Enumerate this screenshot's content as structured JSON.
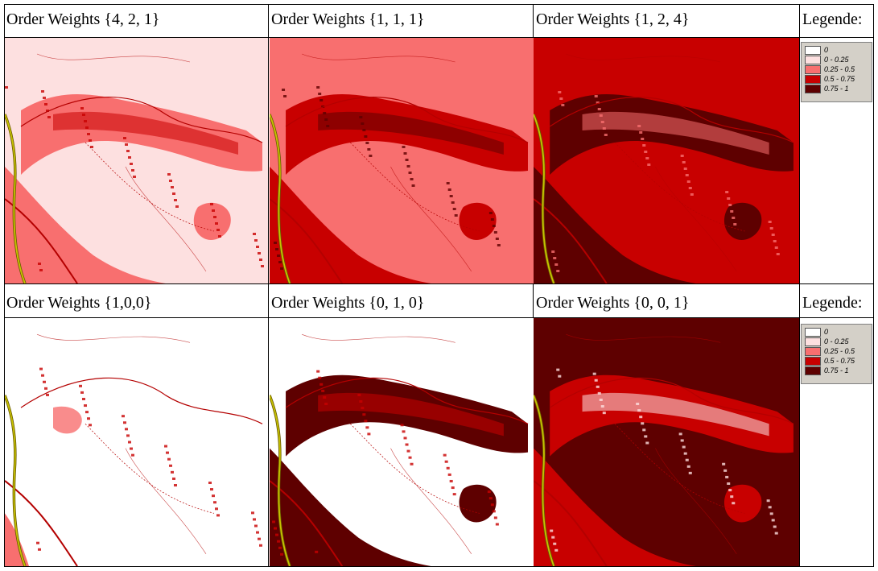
{
  "colors": {
    "class_0": "#ffffff",
    "class_1": "#fde0e0",
    "class_2": "#f86f6f",
    "class_3": "#c80000",
    "class_4": "#5e0000",
    "road": "#b40000",
    "highway": "#c6c200"
  },
  "panels": [
    {
      "label": "Order Weights {4, 2, 1}",
      "base": "class_1",
      "patch": "class_2",
      "core": "class_3"
    },
    {
      "label": "Order Weights {1, 1, 1}",
      "base": "class_2",
      "patch": "class_3",
      "core": "class_4"
    },
    {
      "label": "Order Weights {1, 2, 4}",
      "base": "class_3",
      "patch": "class_4",
      "core": "class_2"
    },
    {
      "label": "Order Weights {1,0,0}",
      "base": "class_0",
      "patch": "class_2",
      "core": "class_3"
    },
    {
      "label": "Order Weights {0, 1, 0}",
      "base": "class_0",
      "patch": "class_4",
      "core": "class_3"
    },
    {
      "label": "Order Weights {0, 0, 1}",
      "base": "class_4",
      "patch": "class_3",
      "core": "class_1"
    }
  ],
  "legend_header": "Legende:",
  "legend_items": [
    {
      "label": "0",
      "color": "class_0"
    },
    {
      "label": "0 - 0.25",
      "color": "class_1"
    },
    {
      "label": "0.25 - 0.5",
      "color": "class_2"
    },
    {
      "label": "0.5 - 0.75",
      "color": "class_3"
    },
    {
      "label": "0.75 - 1",
      "color": "class_4"
    }
  ]
}
